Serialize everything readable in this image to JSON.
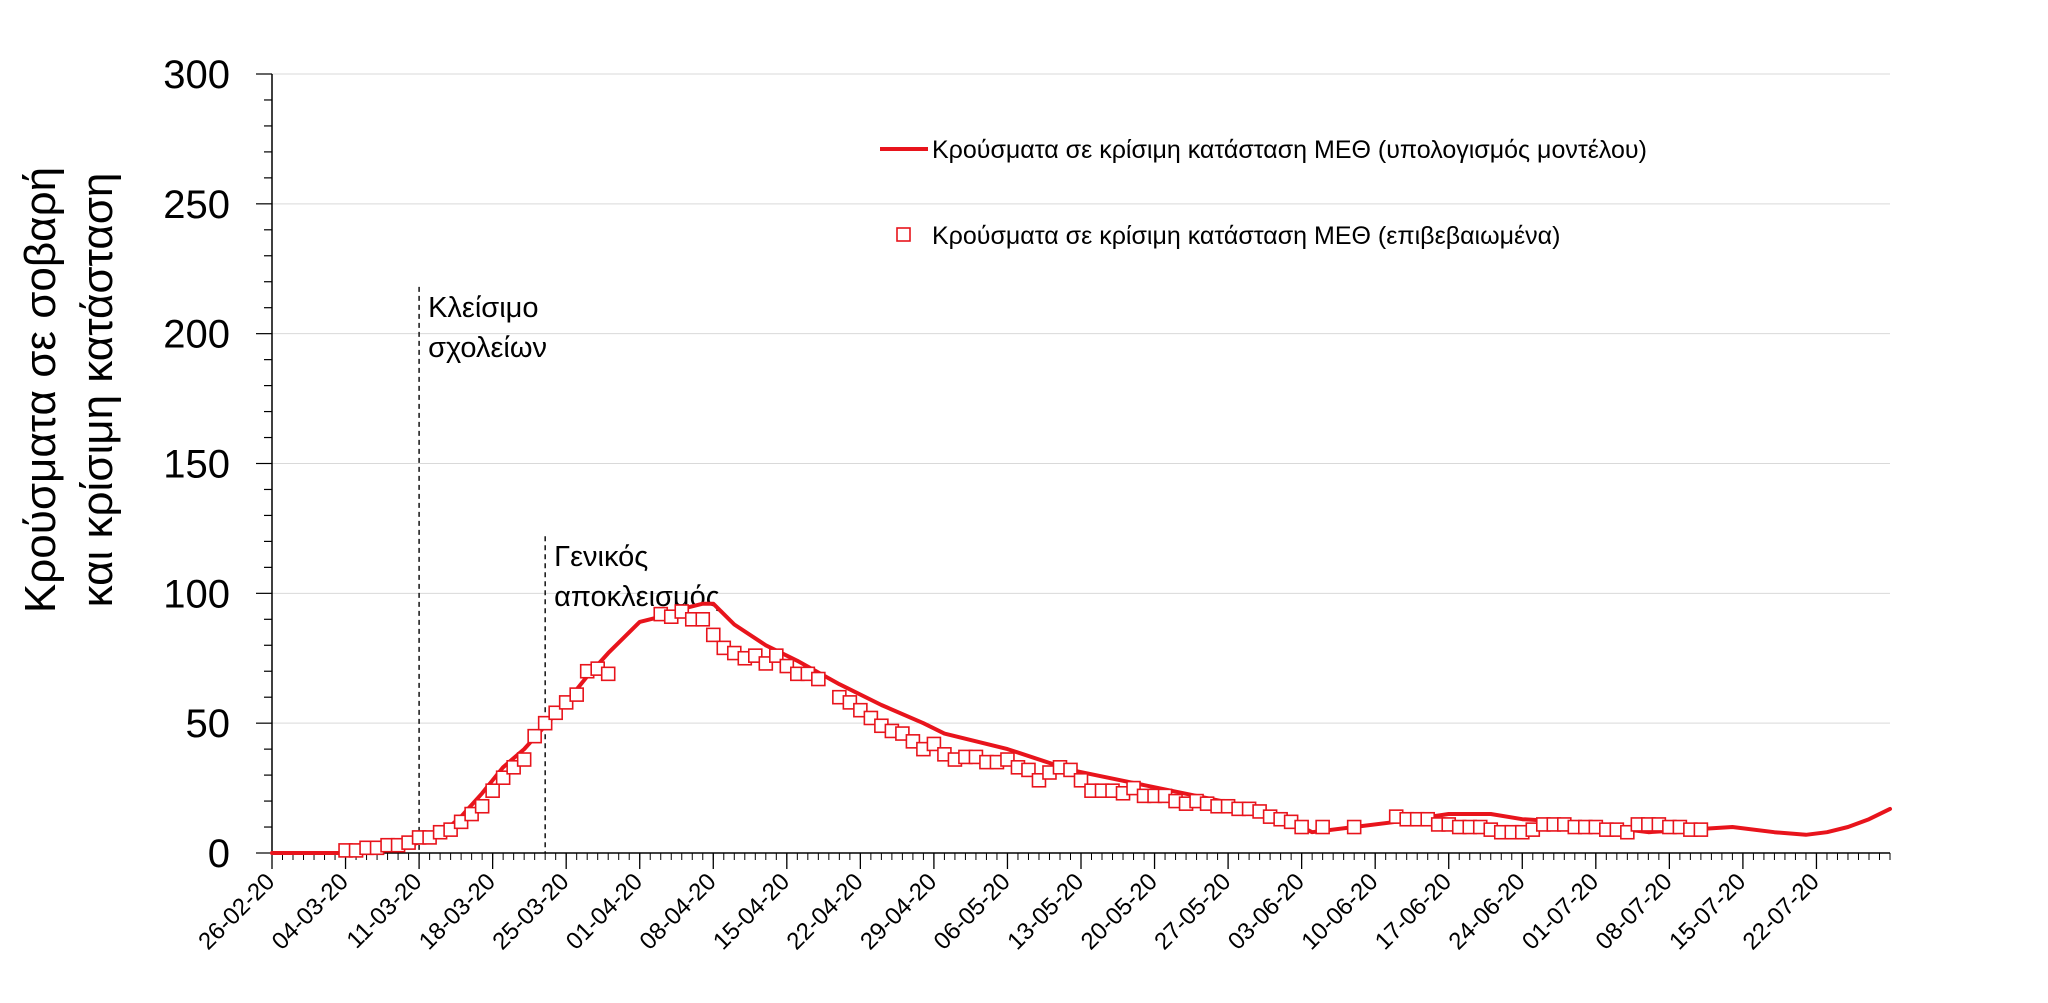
{
  "chart_data": {
    "type": "line",
    "ylabel_lines": [
      "Κρούσματα σε σοβαρή",
      "και κρίσιμη κατάσταση"
    ],
    "ylim": [
      0,
      300
    ],
    "yticks": [
      0,
      50,
      100,
      150,
      200,
      250,
      300
    ],
    "xlim": [
      "2020-02-26",
      "2020-07-29"
    ],
    "xticks": [
      {
        "date": "2020-02-26",
        "label": "26-02-20"
      },
      {
        "date": "2020-03-04",
        "label": "04-03-20"
      },
      {
        "date": "2020-03-11",
        "label": "11-03-20"
      },
      {
        "date": "2020-03-18",
        "label": "18-03-20"
      },
      {
        "date": "2020-03-25",
        "label": "25-03-20"
      },
      {
        "date": "2020-04-01",
        "label": "01-04-20"
      },
      {
        "date": "2020-04-08",
        "label": "08-04-20"
      },
      {
        "date": "2020-04-15",
        "label": "15-04-20"
      },
      {
        "date": "2020-04-22",
        "label": "22-04-20"
      },
      {
        "date": "2020-04-29",
        "label": "29-04-20"
      },
      {
        "date": "2020-05-06",
        "label": "06-05-20"
      },
      {
        "date": "2020-05-13",
        "label": "13-05-20"
      },
      {
        "date": "2020-05-20",
        "label": "20-05-20"
      },
      {
        "date": "2020-05-27",
        "label": "27-05-20"
      },
      {
        "date": "2020-06-03",
        "label": "03-06-20"
      },
      {
        "date": "2020-06-10",
        "label": "10-06-20"
      },
      {
        "date": "2020-06-17",
        "label": "17-06-20"
      },
      {
        "date": "2020-06-24",
        "label": "24-06-20"
      },
      {
        "date": "2020-07-01",
        "label": "01-07-20"
      },
      {
        "date": "2020-07-08",
        "label": "08-07-20"
      },
      {
        "date": "2020-07-15",
        "label": "15-07-20"
      },
      {
        "date": "2020-07-22",
        "label": "22-07-20"
      }
    ],
    "grid_y": true,
    "legend_position": "top-right",
    "series": [
      {
        "name": "Κρούσματα σε κρίσιμη κατάσταση ΜΕΘ (υπολογισμός μοντέλου)",
        "style": "line",
        "color": "#e8141c",
        "points": [
          [
            "2020-02-26",
            0
          ],
          [
            "2020-03-04",
            0
          ],
          [
            "2020-03-07",
            1
          ],
          [
            "2020-03-09",
            2
          ],
          [
            "2020-03-11",
            4
          ],
          [
            "2020-03-13",
            7
          ],
          [
            "2020-03-15",
            14
          ],
          [
            "2020-03-17",
            23
          ],
          [
            "2020-03-19",
            33
          ],
          [
            "2020-03-21",
            40
          ],
          [
            "2020-03-23",
            49
          ],
          [
            "2020-03-25",
            58
          ],
          [
            "2020-03-27",
            68
          ],
          [
            "2020-03-29",
            77
          ],
          [
            "2020-03-31",
            85
          ],
          [
            "2020-04-01",
            89
          ],
          [
            "2020-04-03",
            91
          ],
          [
            "2020-04-05",
            94
          ],
          [
            "2020-04-07",
            96
          ],
          [
            "2020-04-08",
            96
          ],
          [
            "2020-04-10",
            88
          ],
          [
            "2020-04-13",
            80
          ],
          [
            "2020-04-16",
            74
          ],
          [
            "2020-04-20",
            65
          ],
          [
            "2020-04-24",
            57
          ],
          [
            "2020-04-28",
            50
          ],
          [
            "2020-04-30",
            46
          ],
          [
            "2020-05-06",
            40
          ],
          [
            "2020-05-12",
            32
          ],
          [
            "2020-05-18",
            27
          ],
          [
            "2020-05-24",
            22
          ],
          [
            "2020-05-30",
            17
          ],
          [
            "2020-06-02",
            12
          ],
          [
            "2020-06-04",
            8
          ],
          [
            "2020-06-08",
            10
          ],
          [
            "2020-06-12",
            12
          ],
          [
            "2020-06-17",
            15
          ],
          [
            "2020-06-21",
            15
          ],
          [
            "2020-06-24",
            13
          ],
          [
            "2020-06-28",
            12
          ],
          [
            "2020-07-02",
            10
          ],
          [
            "2020-07-06",
            8
          ],
          [
            "2020-07-10",
            9
          ],
          [
            "2020-07-14",
            10
          ],
          [
            "2020-07-18",
            8
          ],
          [
            "2020-07-21",
            7
          ],
          [
            "2020-07-23",
            8
          ],
          [
            "2020-07-25",
            10
          ],
          [
            "2020-07-27",
            13
          ],
          [
            "2020-07-29",
            17
          ]
        ]
      },
      {
        "name": "Κρούσματα σε κρίσιμη κατάσταση ΜΕΘ (επιβεβαιωμένα)",
        "style": "marker-open-square",
        "color": "#e8141c",
        "points": [
          [
            "2020-03-04",
            1
          ],
          [
            "2020-03-05",
            1
          ],
          [
            "2020-03-06",
            2
          ],
          [
            "2020-03-07",
            2
          ],
          [
            "2020-03-08",
            3
          ],
          [
            "2020-03-09",
            3
          ],
          [
            "2020-03-10",
            4
          ],
          [
            "2020-03-11",
            6
          ],
          [
            "2020-03-12",
            6
          ],
          [
            "2020-03-13",
            8
          ],
          [
            "2020-03-14",
            9
          ],
          [
            "2020-03-15",
            12
          ],
          [
            "2020-03-16",
            15
          ],
          [
            "2020-03-17",
            18
          ],
          [
            "2020-03-18",
            24
          ],
          [
            "2020-03-19",
            29
          ],
          [
            "2020-03-20",
            33
          ],
          [
            "2020-03-21",
            36
          ],
          [
            "2020-03-22",
            45
          ],
          [
            "2020-03-23",
            50
          ],
          [
            "2020-03-24",
            54
          ],
          [
            "2020-03-25",
            58
          ],
          [
            "2020-03-26",
            61
          ],
          [
            "2020-03-27",
            70
          ],
          [
            "2020-03-28",
            71
          ],
          [
            "2020-03-29",
            69
          ],
          [
            "2020-04-03",
            92
          ],
          [
            "2020-04-04",
            91
          ],
          [
            "2020-04-05",
            93
          ],
          [
            "2020-04-06",
            90
          ],
          [
            "2020-04-07",
            90
          ],
          [
            "2020-04-08",
            84
          ],
          [
            "2020-04-09",
            79
          ],
          [
            "2020-04-10",
            77
          ],
          [
            "2020-04-11",
            75
          ],
          [
            "2020-04-12",
            76
          ],
          [
            "2020-04-13",
            73
          ],
          [
            "2020-04-14",
            76
          ],
          [
            "2020-04-15",
            72
          ],
          [
            "2020-04-16",
            69
          ],
          [
            "2020-04-17",
            69
          ],
          [
            "2020-04-18",
            67
          ],
          [
            "2020-04-20",
            60
          ],
          [
            "2020-04-21",
            58
          ],
          [
            "2020-04-22",
            55
          ],
          [
            "2020-04-23",
            52
          ],
          [
            "2020-04-24",
            49
          ],
          [
            "2020-04-25",
            47
          ],
          [
            "2020-04-26",
            46
          ],
          [
            "2020-04-27",
            43
          ],
          [
            "2020-04-28",
            40
          ],
          [
            "2020-04-29",
            42
          ],
          [
            "2020-04-30",
            38
          ],
          [
            "2020-05-01",
            36
          ],
          [
            "2020-05-02",
            37
          ],
          [
            "2020-05-03",
            37
          ],
          [
            "2020-05-04",
            35
          ],
          [
            "2020-05-05",
            35
          ],
          [
            "2020-05-06",
            36
          ],
          [
            "2020-05-07",
            33
          ],
          [
            "2020-05-08",
            32
          ],
          [
            "2020-05-09",
            28
          ],
          [
            "2020-05-10",
            31
          ],
          [
            "2020-05-11",
            33
          ],
          [
            "2020-05-12",
            32
          ],
          [
            "2020-05-13",
            28
          ],
          [
            "2020-05-14",
            24
          ],
          [
            "2020-05-15",
            24
          ],
          [
            "2020-05-16",
            24
          ],
          [
            "2020-05-17",
            23
          ],
          [
            "2020-05-18",
            25
          ],
          [
            "2020-05-19",
            22
          ],
          [
            "2020-05-20",
            22
          ],
          [
            "2020-05-21",
            22
          ],
          [
            "2020-05-22",
            20
          ],
          [
            "2020-05-23",
            19
          ],
          [
            "2020-05-24",
            20
          ],
          [
            "2020-05-25",
            19
          ],
          [
            "2020-05-26",
            18
          ],
          [
            "2020-05-27",
            18
          ],
          [
            "2020-05-28",
            17
          ],
          [
            "2020-05-29",
            17
          ],
          [
            "2020-05-30",
            16
          ],
          [
            "2020-05-31",
            14
          ],
          [
            "2020-06-01",
            13
          ],
          [
            "2020-06-02",
            12
          ],
          [
            "2020-06-03",
            10
          ],
          [
            "2020-06-05",
            10
          ],
          [
            "2020-06-08",
            10
          ],
          [
            "2020-06-12",
            14
          ],
          [
            "2020-06-13",
            13
          ],
          [
            "2020-06-14",
            13
          ],
          [
            "2020-06-15",
            13
          ],
          [
            "2020-06-16",
            11
          ],
          [
            "2020-06-17",
            11
          ],
          [
            "2020-06-18",
            10
          ],
          [
            "2020-06-19",
            10
          ],
          [
            "2020-06-20",
            10
          ],
          [
            "2020-06-21",
            9
          ],
          [
            "2020-06-22",
            8
          ],
          [
            "2020-06-23",
            8
          ],
          [
            "2020-06-24",
            8
          ],
          [
            "2020-06-25",
            9
          ],
          [
            "2020-06-26",
            11
          ],
          [
            "2020-06-27",
            11
          ],
          [
            "2020-06-28",
            11
          ],
          [
            "2020-06-29",
            10
          ],
          [
            "2020-06-30",
            10
          ],
          [
            "2020-07-01",
            10
          ],
          [
            "2020-07-02",
            9
          ],
          [
            "2020-07-03",
            9
          ],
          [
            "2020-07-04",
            8
          ],
          [
            "2020-07-05",
            11
          ],
          [
            "2020-07-06",
            11
          ],
          [
            "2020-07-07",
            11
          ],
          [
            "2020-07-08",
            10
          ],
          [
            "2020-07-09",
            10
          ],
          [
            "2020-07-10",
            9
          ],
          [
            "2020-07-11",
            9
          ]
        ]
      }
    ],
    "annotations": [
      {
        "date": "2020-03-11",
        "ymax": 218,
        "lines": [
          "Κλείσιμο",
          "σχολείων"
        ]
      },
      {
        "date": "2020-03-23",
        "ymax": 122,
        "lines": [
          "Γενικός",
          "αποκλεισμός"
        ]
      }
    ]
  }
}
